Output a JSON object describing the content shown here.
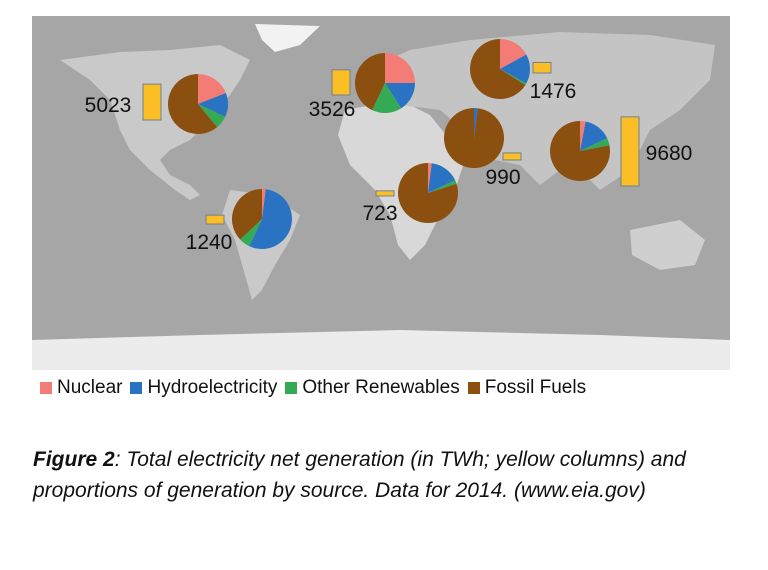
{
  "chart_data": {
    "type": "pie",
    "unit": "TWh",
    "legend_position": "bottom",
    "legend": [
      "Nuclear",
      "Hydroelectricity",
      "Other Renewables",
      "Fossil Fuels"
    ],
    "colors": {
      "Nuclear": "#f47c77",
      "Hydroelectricity": "#2a73c2",
      "Other Renewables": "#34aa54",
      "Fossil Fuels": "#8b4f10",
      "column": "#fbbf25",
      "ocean": "#a6a6a6"
    },
    "pies": [
      {
        "total": 5023,
        "label": "5023",
        "shares": [
          0.19,
          0.13,
          0.07,
          0.61
        ]
      },
      {
        "total": 3526,
        "label": "3526",
        "shares": [
          0.25,
          0.16,
          0.16,
          0.43
        ]
      },
      {
        "total": 1476,
        "label": "1476",
        "shares": [
          0.17,
          0.16,
          0.01,
          0.66
        ]
      },
      {
        "total": 990,
        "label": "990",
        "shares": [
          0.0,
          0.02,
          0.0,
          0.98
        ]
      },
      {
        "total": 9680,
        "label": "9680",
        "shares": [
          0.03,
          0.15,
          0.04,
          0.78
        ]
      },
      {
        "total": 723,
        "label": "723",
        "shares": [
          0.02,
          0.16,
          0.02,
          0.8
        ]
      },
      {
        "total": 1240,
        "label": "1240",
        "shares": [
          0.02,
          0.55,
          0.06,
          0.37
        ]
      }
    ]
  },
  "caption": {
    "figure_label": "Figure 2",
    "text": ": Total electricity net generation (in TWh; yellow columns) and proportions of generation by source. Data for 2014. (www.eia.gov)"
  }
}
